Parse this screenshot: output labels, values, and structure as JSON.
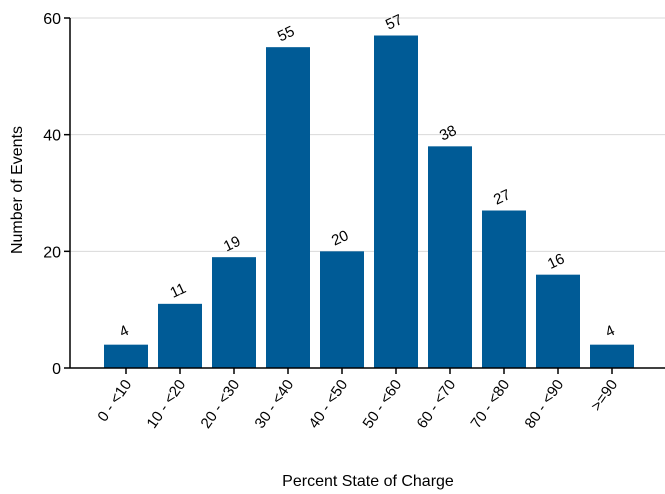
{
  "chart_data": {
    "type": "bar",
    "categories": [
      "0 - <10",
      "10 - <20",
      "20 - <30",
      "30 - <40",
      "40 - <50",
      "50 - <60",
      "60 - <70",
      "70 - <80",
      "80 - <90",
      ">=90"
    ],
    "values": [
      4,
      11,
      19,
      55,
      20,
      57,
      38,
      27,
      16,
      4
    ],
    "data_labels": [
      "4",
      "11",
      "19",
      "55",
      "20",
      "57",
      "38",
      "27",
      "16",
      "4"
    ],
    "title": "",
    "xlabel": "Percent State of Charge",
    "ylabel": "Number of Events",
    "ylim": [
      0,
      60
    ],
    "yticks": [
      0,
      20,
      40,
      60
    ],
    "grid": "horizontal",
    "legend": "none",
    "colors": {
      "bar": "#005b96",
      "grid": "#d9d9d9",
      "axis": "#000000"
    }
  }
}
